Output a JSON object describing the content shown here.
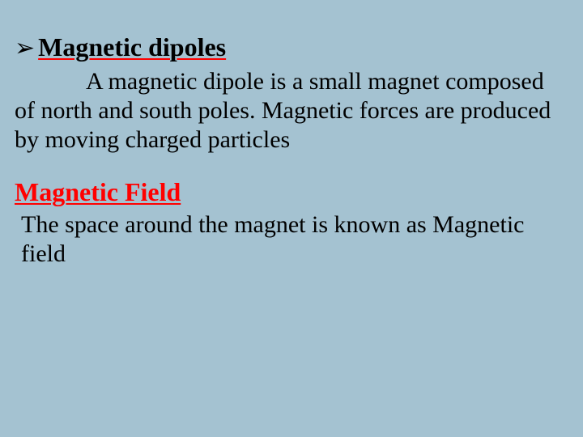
{
  "slide": {
    "background_color": "#a4c2d1",
    "font_family": "Times New Roman",
    "heading1": {
      "bullet": "➢",
      "text": "Magnetic dipoles",
      "fontsize": 32,
      "font_weight": "bold",
      "text_color": "#000000",
      "underline_color": "#ff0000"
    },
    "paragraph1": {
      "text": "A magnetic dipole is a small magnet composed of north and south poles. Magnetic forces are produced by moving charged particles",
      "fontsize": 30,
      "text_color": "#000000",
      "indent_first_line": true
    },
    "heading2": {
      "text": "Magnetic Field",
      "fontsize": 32,
      "font_weight": "bold",
      "text_color": "#ff0000",
      "underline_color": "#ff0000"
    },
    "paragraph2": {
      "text": "The space around the magnet is known as Magnetic field",
      "fontsize": 30,
      "text_color": "#000000"
    }
  }
}
